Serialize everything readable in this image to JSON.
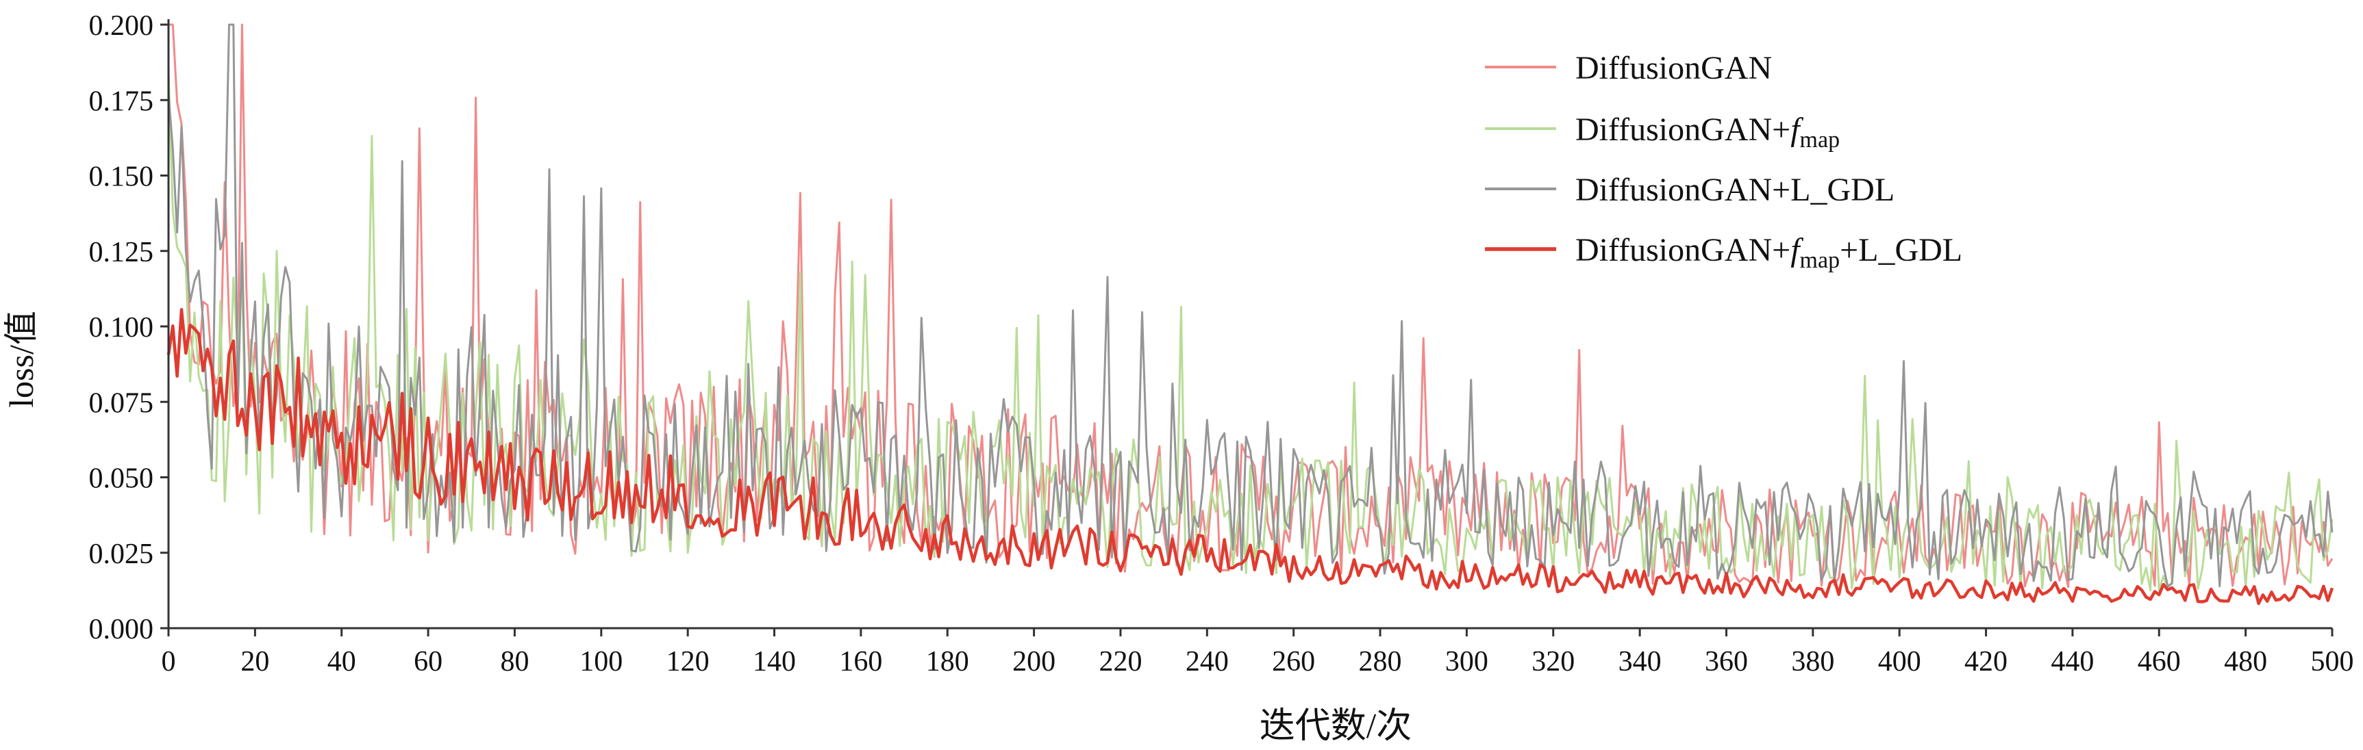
{
  "chart_data": {
    "type": "line",
    "title": "",
    "xlabel": "迭代数/次",
    "ylabel": "loss/值",
    "xlim": [
      0,
      500
    ],
    "ylim": [
      0,
      0.2
    ],
    "x_ticks": [
      "0",
      "20",
      "40",
      "60",
      "80",
      "100",
      "120",
      "140",
      "160",
      "180",
      "200",
      "220",
      "240",
      "260",
      "280",
      "300",
      "320",
      "340",
      "360",
      "380",
      "400",
      "420",
      "440",
      "460",
      "480",
      "500"
    ],
    "y_ticks": [
      "0.000",
      "0.025",
      "0.050",
      "0.075",
      "0.100",
      "0.125",
      "0.150",
      "0.175",
      "0.200"
    ],
    "grid": false,
    "legend_position": "top-right",
    "x_sample_step": 5,
    "x": [
      0,
      5,
      10,
      15,
      20,
      25,
      30,
      35,
      40,
      45,
      50,
      55,
      60,
      65,
      70,
      75,
      80,
      85,
      90,
      95,
      100,
      105,
      110,
      115,
      120,
      125,
      130,
      135,
      140,
      145,
      150,
      155,
      160,
      165,
      170,
      175,
      180,
      185,
      190,
      195,
      200,
      205,
      210,
      215,
      220,
      225,
      230,
      235,
      240,
      245,
      250,
      255,
      260,
      265,
      270,
      275,
      280,
      285,
      290,
      295,
      300,
      305,
      310,
      315,
      320,
      325,
      330,
      335,
      340,
      345,
      350,
      355,
      360,
      365,
      370,
      375,
      380,
      385,
      390,
      395,
      400,
      405,
      410,
      415,
      420,
      425,
      430,
      435,
      440,
      445,
      450,
      455,
      460,
      465,
      470,
      475,
      480,
      485,
      490,
      495,
      500
    ],
    "series": [
      {
        "name": "DiffusionGAN",
        "legend_label": "DiffusionGAN",
        "color": "#f08a8a",
        "stroke_width": 3,
        "values": [
          0.2,
          0.105,
          0.09,
          0.115,
          0.07,
          0.08,
          0.075,
          0.065,
          0.07,
          0.06,
          0.065,
          0.07,
          0.055,
          0.06,
          0.07,
          0.065,
          0.05,
          0.06,
          0.055,
          0.05,
          0.055,
          0.05,
          0.05,
          0.06,
          0.05,
          0.06,
          0.055,
          0.06,
          0.07,
          0.06,
          0.055,
          0.05,
          0.055,
          0.05,
          0.055,
          0.05,
          0.05,
          0.055,
          0.045,
          0.05,
          0.045,
          0.05,
          0.045,
          0.045,
          0.04,
          0.045,
          0.04,
          0.045,
          0.045,
          0.04,
          0.04,
          0.045,
          0.04,
          0.04,
          0.038,
          0.04,
          0.037,
          0.038,
          0.035,
          0.037,
          0.035,
          0.036,
          0.035,
          0.035,
          0.034,
          0.034,
          0.033,
          0.034,
          0.032,
          0.033,
          0.032,
          0.033,
          0.032,
          0.031,
          0.032,
          0.031,
          0.03,
          0.031,
          0.03,
          0.031,
          0.03,
          0.031,
          0.03,
          0.03,
          0.029,
          0.03,
          0.029,
          0.03,
          0.029,
          0.029,
          0.028,
          0.029,
          0.028,
          0.029,
          0.028,
          0.028,
          0.027,
          0.028,
          0.027,
          0.027,
          0.027
        ]
      },
      {
        "name": "DiffusionGAN+f_map",
        "legend_label": "DiffusionGAN+",
        "legend_italic": "f",
        "legend_sub": "map",
        "legend_suffix": "",
        "color": "#b8dc96",
        "stroke_width": 3,
        "values": [
          0.155,
          0.095,
          0.08,
          0.1,
          0.075,
          0.085,
          0.07,
          0.07,
          0.065,
          0.065,
          0.06,
          0.07,
          0.055,
          0.06,
          0.065,
          0.06,
          0.06,
          0.065,
          0.06,
          0.055,
          0.055,
          0.055,
          0.05,
          0.055,
          0.05,
          0.055,
          0.05,
          0.055,
          0.055,
          0.05,
          0.05,
          0.05,
          0.05,
          0.05,
          0.05,
          0.045,
          0.045,
          0.05,
          0.045,
          0.045,
          0.042,
          0.045,
          0.042,
          0.042,
          0.04,
          0.042,
          0.04,
          0.04,
          0.04,
          0.038,
          0.038,
          0.039,
          0.037,
          0.038,
          0.036,
          0.037,
          0.035,
          0.036,
          0.034,
          0.035,
          0.034,
          0.035,
          0.034,
          0.034,
          0.033,
          0.033,
          0.032,
          0.033,
          0.031,
          0.032,
          0.031,
          0.032,
          0.031,
          0.03,
          0.031,
          0.03,
          0.03,
          0.03,
          0.029,
          0.03,
          0.029,
          0.03,
          0.029,
          0.029,
          0.028,
          0.029,
          0.028,
          0.029,
          0.028,
          0.028,
          0.028,
          0.028,
          0.027,
          0.028,
          0.027,
          0.027,
          0.027,
          0.027,
          0.027,
          0.026,
          0.027
        ]
      },
      {
        "name": "DiffusionGAN+L_GDL",
        "legend_label": "DiffusionGAN+L_GDL",
        "color": "#969696",
        "stroke_width": 3,
        "values": [
          0.2,
          0.11,
          0.085,
          0.12,
          0.075,
          0.085,
          0.08,
          0.07,
          0.065,
          0.065,
          0.06,
          0.065,
          0.055,
          0.06,
          0.07,
          0.065,
          0.055,
          0.06,
          0.06,
          0.055,
          0.055,
          0.055,
          0.05,
          0.06,
          0.05,
          0.055,
          0.055,
          0.06,
          0.065,
          0.055,
          0.055,
          0.05,
          0.055,
          0.05,
          0.055,
          0.05,
          0.05,
          0.05,
          0.045,
          0.05,
          0.045,
          0.048,
          0.045,
          0.045,
          0.042,
          0.045,
          0.042,
          0.045,
          0.045,
          0.042,
          0.042,
          0.045,
          0.042,
          0.042,
          0.04,
          0.041,
          0.039,
          0.04,
          0.037,
          0.039,
          0.037,
          0.038,
          0.037,
          0.037,
          0.036,
          0.036,
          0.035,
          0.036,
          0.034,
          0.035,
          0.034,
          0.035,
          0.034,
          0.034,
          0.034,
          0.033,
          0.032,
          0.033,
          0.032,
          0.033,
          0.032,
          0.033,
          0.032,
          0.032,
          0.032,
          0.032,
          0.031,
          0.032,
          0.031,
          0.031,
          0.031,
          0.031,
          0.03,
          0.031,
          0.03,
          0.03,
          0.03,
          0.03,
          0.03,
          0.03,
          0.03
        ]
      },
      {
        "name": "DiffusionGAN+f_map+L_GDL",
        "legend_label": "DiffusionGAN+",
        "legend_italic": "f",
        "legend_sub": "map",
        "legend_suffix": "+L_GDL",
        "color": "#e03b30",
        "stroke_width": 4.5,
        "values": [
          0.09,
          0.1,
          0.085,
          0.08,
          0.075,
          0.075,
          0.07,
          0.065,
          0.06,
          0.06,
          0.06,
          0.065,
          0.055,
          0.055,
          0.055,
          0.05,
          0.05,
          0.048,
          0.05,
          0.045,
          0.048,
          0.045,
          0.045,
          0.048,
          0.045,
          0.045,
          0.04,
          0.04,
          0.042,
          0.04,
          0.04,
          0.038,
          0.036,
          0.034,
          0.032,
          0.03,
          0.03,
          0.029,
          0.029,
          0.028,
          0.028,
          0.027,
          0.027,
          0.026,
          0.025,
          0.026,
          0.024,
          0.024,
          0.024,
          0.023,
          0.022,
          0.022,
          0.021,
          0.021,
          0.02,
          0.02,
          0.019,
          0.019,
          0.018,
          0.018,
          0.018,
          0.017,
          0.017,
          0.017,
          0.016,
          0.016,
          0.016,
          0.016,
          0.015,
          0.015,
          0.015,
          0.015,
          0.015,
          0.014,
          0.014,
          0.014,
          0.014,
          0.014,
          0.014,
          0.013,
          0.013,
          0.013,
          0.013,
          0.013,
          0.013,
          0.013,
          0.012,
          0.012,
          0.012,
          0.012,
          0.012,
          0.012,
          0.012,
          0.012,
          0.012,
          0.012,
          0.011,
          0.011,
          0.011,
          0.011,
          0.011
        ]
      }
    ]
  }
}
